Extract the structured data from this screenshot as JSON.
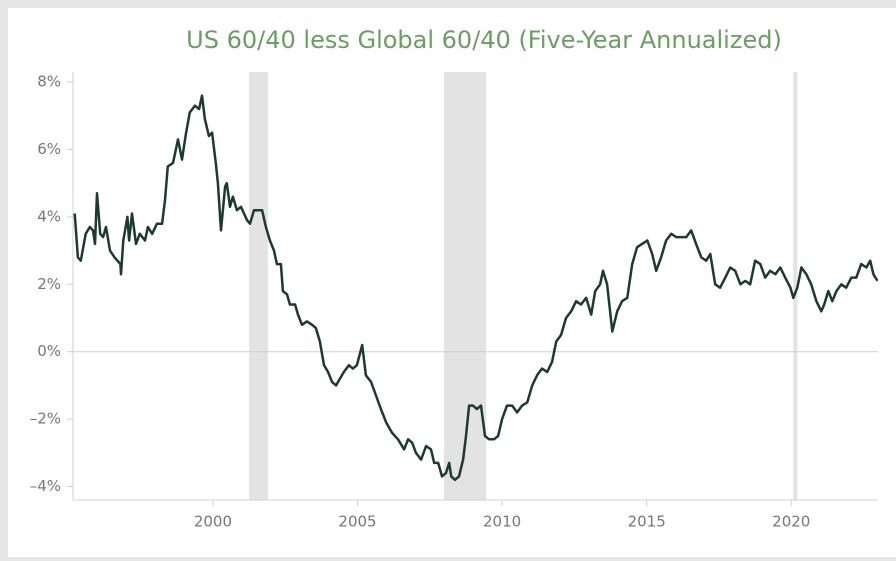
{
  "chart_data": {
    "type": "line",
    "title": "US 60/40 less Global 60/40 (Five-Year Annualized)",
    "x": [
      1995.22,
      1995.33,
      1995.43,
      1995.6,
      1995.74,
      1995.85,
      1995.92,
      1995.99,
      1996.1,
      1996.2,
      1996.3,
      1996.44,
      1996.6,
      1996.8,
      1996.82,
      1996.9,
      1997.04,
      1997.1,
      1997.2,
      1997.34,
      1997.47,
      1997.65,
      1997.75,
      1997.9,
      1998.06,
      1998.24,
      1998.34,
      1998.44,
      1998.62,
      1998.79,
      1998.93,
      1999.07,
      1999.2,
      1999.38,
      1999.52,
      1999.62,
      1999.72,
      1999.86,
      1999.97,
      2000.1,
      2000.17,
      2000.28,
      2000.42,
      2000.48,
      2000.59,
      2000.69,
      2000.83,
      2000.97,
      2001.18,
      2001.28,
      2001.42,
      2001.56,
      2001.7,
      2001.83,
      2001.97,
      2002.11,
      2002.21,
      2002.35,
      2002.42,
      2002.56,
      2002.66,
      2002.84,
      2002.94,
      2003.08,
      2003.25,
      2003.43,
      2003.56,
      2003.7,
      2003.84,
      2003.98,
      2004.12,
      2004.26,
      2004.39,
      2004.53,
      2004.7,
      2004.84,
      2004.98,
      2005.16,
      2005.29,
      2005.47,
      2005.64,
      2005.81,
      2005.99,
      2006.19,
      2006.4,
      2006.61,
      2006.75,
      2006.89,
      2007.02,
      2007.2,
      2007.37,
      2007.54,
      2007.65,
      2007.79,
      2007.92,
      2008.06,
      2008.17,
      2008.24,
      2008.37,
      2008.51,
      2008.65,
      2008.75,
      2008.86,
      2008.99,
      2009.13,
      2009.27,
      2009.41,
      2009.55,
      2009.72,
      2009.86,
      2010.0,
      2010.17,
      2010.35,
      2010.52,
      2010.69,
      2010.87,
      2011.04,
      2011.21,
      2011.38,
      2011.56,
      2011.73,
      2011.87,
      2012.04,
      2012.21,
      2012.39,
      2012.56,
      2012.73,
      2012.91,
      2013.08,
      2013.22,
      2013.39,
      2013.49,
      2013.63,
      2013.81,
      2013.98,
      2014.15,
      2014.33,
      2014.5,
      2014.67,
      2014.84,
      2015.02,
      2015.19,
      2015.33,
      2015.5,
      2015.67,
      2015.85,
      2016.02,
      2016.19,
      2016.37,
      2016.54,
      2016.71,
      2016.89,
      2017.06,
      2017.2,
      2017.37,
      2017.54,
      2017.72,
      2017.89,
      2018.06,
      2018.24,
      2018.41,
      2018.58,
      2018.75,
      2018.93,
      2019.1,
      2019.27,
      2019.45,
      2019.62,
      2019.79,
      2019.97,
      2020.07,
      2020.21,
      2020.35,
      2020.52,
      2020.69,
      2020.87,
      2021.04,
      2021.14,
      2021.28,
      2021.42,
      2021.56,
      2021.73,
      2021.9,
      2022.08,
      2022.25,
      2022.42,
      2022.6,
      2022.73,
      2022.84,
      2022.98
    ],
    "series": [
      {
        "color": "#1d3a31",
        "values": [
          4.1,
          2.8,
          2.7,
          3.5,
          3.7,
          3.6,
          3.2,
          4.7,
          3.5,
          3.4,
          3.7,
          3.0,
          2.8,
          2.6,
          2.3,
          3.3,
          4.0,
          3.3,
          4.1,
          3.2,
          3.5,
          3.3,
          3.7,
          3.5,
          3.8,
          3.8,
          4.5,
          5.5,
          5.6,
          6.3,
          5.7,
          6.5,
          7.1,
          7.3,
          7.2,
          7.6,
          6.9,
          6.4,
          6.5,
          5.6,
          5.0,
          3.6,
          4.9,
          5.0,
          4.3,
          4.6,
          4.2,
          4.3,
          3.9,
          3.8,
          4.2,
          4.2,
          4.2,
          3.7,
          3.3,
          3.0,
          2.6,
          2.6,
          1.8,
          1.7,
          1.4,
          1.4,
          1.1,
          0.8,
          0.9,
          0.8,
          0.7,
          0.3,
          -0.4,
          -0.6,
          -0.9,
          -1.0,
          -0.8,
          -0.6,
          -0.4,
          -0.5,
          -0.4,
          0.2,
          -0.7,
          -0.9,
          -1.3,
          -1.7,
          -2.1,
          -2.4,
          -2.6,
          -2.9,
          -2.6,
          -2.7,
          -3.0,
          -3.2,
          -2.8,
          -2.9,
          -3.3,
          -3.3,
          -3.7,
          -3.6,
          -3.3,
          -3.7,
          -3.8,
          -3.7,
          -3.2,
          -2.5,
          -1.6,
          -1.6,
          -1.7,
          -1.6,
          -2.5,
          -2.6,
          -2.6,
          -2.5,
          -2.0,
          -1.6,
          -1.6,
          -1.8,
          -1.6,
          -1.5,
          -1.0,
          -0.7,
          -0.5,
          -0.6,
          -0.3,
          0.3,
          0.5,
          1.0,
          1.2,
          1.5,
          1.4,
          1.6,
          1.1,
          1.8,
          2.0,
          2.4,
          2.0,
          0.6,
          1.2,
          1.5,
          1.6,
          2.6,
          3.1,
          3.2,
          3.3,
          2.9,
          2.4,
          2.8,
          3.3,
          3.5,
          3.4,
          3.4,
          3.4,
          3.6,
          3.2,
          2.8,
          2.7,
          2.9,
          2.0,
          1.9,
          2.2,
          2.5,
          2.4,
          2.0,
          2.1,
          2.0,
          2.7,
          2.6,
          2.2,
          2.4,
          2.3,
          2.5,
          2.2,
          1.9,
          1.6,
          1.9,
          2.5,
          2.3,
          2.0,
          1.5,
          1.2,
          1.4,
          1.8,
          1.5,
          1.8,
          2.0,
          1.9,
          2.2,
          2.2,
          2.6,
          2.5,
          2.7,
          2.3,
          2.1
        ]
      }
    ],
    "shaded_periods": [
      [
        2001.25,
        2001.9
      ],
      [
        2007.99,
        2009.45
      ],
      [
        2020.07,
        2020.21
      ]
    ],
    "shade_color": "#e3e3e3",
    "xlim": [
      1995.16,
      2023.0
    ],
    "xticks": [
      2000,
      2005,
      2010,
      2015,
      2020
    ],
    "ylim": [
      -4.4,
      8.3
    ],
    "yticks": [
      {
        "value": -4,
        "label": "–4%"
      },
      {
        "value": -2,
        "label": "–2%"
      },
      {
        "value": 0,
        "label": "0%"
      },
      {
        "value": 2,
        "label": "2%"
      },
      {
        "value": 4,
        "label": "4%"
      },
      {
        "value": 6,
        "label": "6%"
      },
      {
        "value": 8,
        "label": "8%"
      }
    ],
    "zero_line": true
  }
}
